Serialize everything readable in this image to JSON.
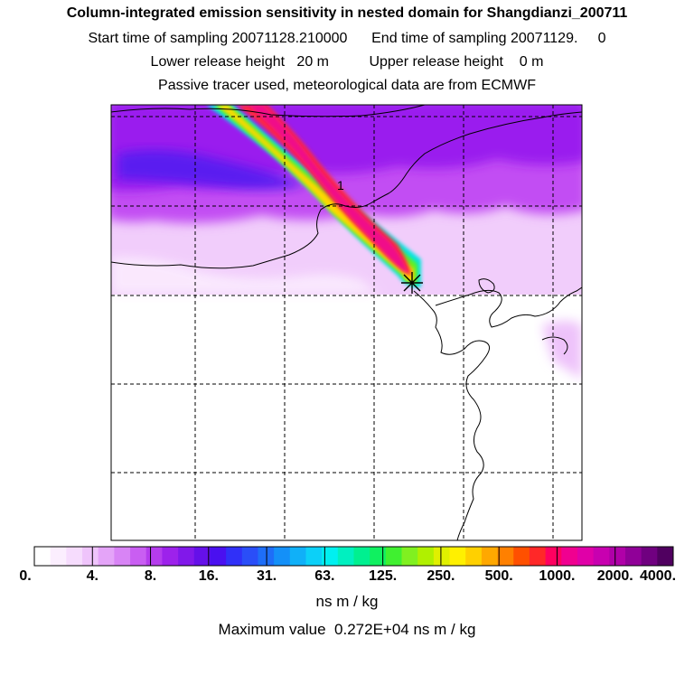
{
  "header": {
    "title": "Column-integrated emission sensitivity in nested domain for Shangdianzi_200711",
    "line2": "Start time of sampling 20071128.210000      End time of sampling 20071129.     0",
    "line3": "Lower release height   20 m          Upper release height    0 m",
    "line4": "Passive tracer used, meteorological data are from ECMWF"
  },
  "map": {
    "plume_label": "1",
    "release_marker": "star-marker",
    "gridlines": "dashed"
  },
  "colorbar": {
    "tick_labels": [
      "0.",
      "4.",
      "8.",
      "16.",
      "31.",
      "63.",
      "125.",
      "250.",
      "500.",
      "1000.",
      "2000.",
      "4000."
    ],
    "colors": [
      "#ffffff",
      "#fbeefe",
      "#f6dcfd",
      "#efc4fb",
      "#e4a4f8",
      "#d884f5",
      "#c95ef2",
      "#b53ced",
      "#9d22eb",
      "#8118ea",
      "#6510e9",
      "#4a10f0",
      "#3030f8",
      "#2a4ef8",
      "#1e6ef8",
      "#1490f8",
      "#10b0f8",
      "#0cd0f8",
      "#00f0f0",
      "#00f0c0",
      "#00f090",
      "#10f060",
      "#40f030",
      "#80f020",
      "#b0f000",
      "#e0f000",
      "#fff000",
      "#ffd000",
      "#ffa800",
      "#ff8000",
      "#ff5000",
      "#ff2828",
      "#ff0060",
      "#f00090",
      "#e000a8",
      "#c800b0",
      "#b000a8",
      "#900098",
      "#700080",
      "#500060"
    ],
    "units": "ns m / kg",
    "max_label": "Maximum value  0.272E+04 ns m / kg"
  }
}
